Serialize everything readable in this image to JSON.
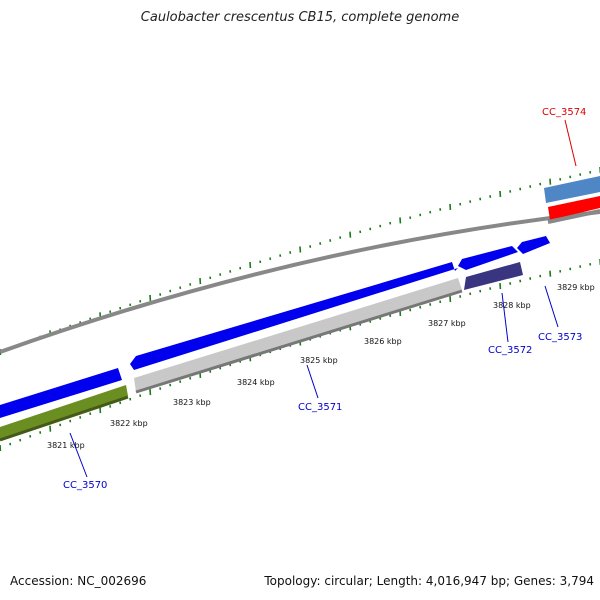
{
  "title": "Caulobacter crescentus CB15, complete genome",
  "footer": {
    "accession": "Accession: NC_002696",
    "summary": "Topology: circular; Length: 4,016,947 bp; Genes: 3,794"
  },
  "colors": {
    "gene_forward": "#0000ee",
    "gene_highlight": "#ff0000",
    "gene_light_blue": "#4f86c6",
    "gene_navy": "#3a3580",
    "gene_green": "#6b8e23",
    "gene_reverse_gray": "#c8c8c8",
    "backbone": "#888888",
    "tick": "#1a7a1a",
    "label_blue": "#0000cc",
    "label_red": "#dd0000"
  },
  "scale_labels": [
    "3821 kbp",
    "3822 kbp",
    "3823 kbp",
    "3824 kbp",
    "3825 kbp",
    "3826 kbp",
    "3827 kbp",
    "3828 kbp",
    "3829 kbp"
  ],
  "gene_labels": [
    {
      "id": "CC_3570",
      "color": "blue"
    },
    {
      "id": "CC_3571",
      "color": "blue"
    },
    {
      "id": "CC_3572",
      "color": "blue"
    },
    {
      "id": "CC_3573",
      "color": "blue"
    },
    {
      "id": "CC_3574",
      "color": "red"
    }
  ]
}
